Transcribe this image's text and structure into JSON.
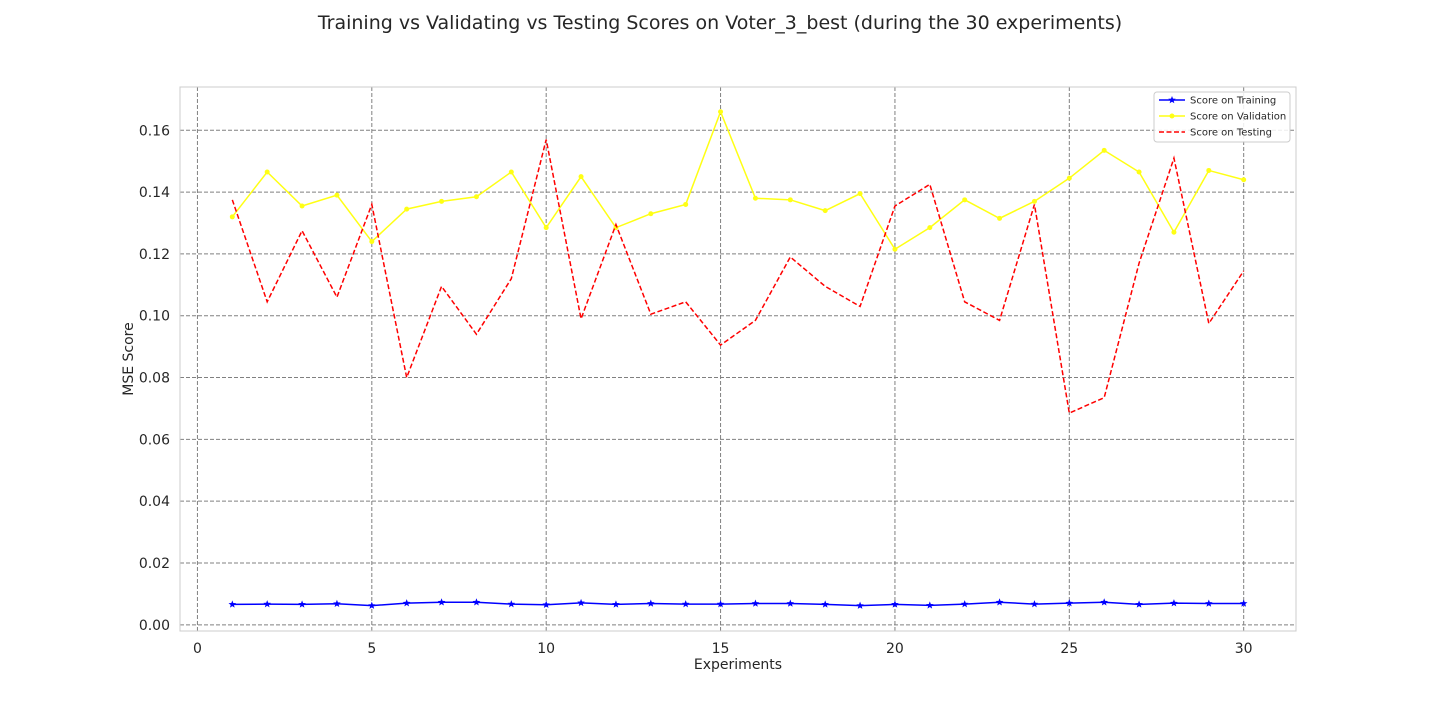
{
  "chart_data": {
    "type": "line",
    "title": "Training vs Validating vs Testing Scores on Voter_3_best (during the 30 experiments)",
    "xlabel": "Experiments",
    "ylabel": "MSE Score",
    "xlim": [
      -0.5,
      31.5
    ],
    "ylim": [
      -0.002,
      0.174
    ],
    "xticks": [
      0,
      5,
      10,
      15,
      20,
      25,
      30
    ],
    "yticks": [
      "0.00",
      "0.02",
      "0.04",
      "0.06",
      "0.08",
      "0.10",
      "0.12",
      "0.14",
      "0.16"
    ],
    "grid": true,
    "legend_position": "top-right",
    "x": [
      1,
      2,
      3,
      4,
      5,
      6,
      7,
      8,
      9,
      10,
      11,
      12,
      13,
      14,
      15,
      16,
      17,
      18,
      19,
      20,
      21,
      22,
      23,
      24,
      25,
      26,
      27,
      28,
      29,
      30
    ],
    "series": [
      {
        "name": "Score on Training",
        "color": "#0000ff",
        "style": "solid",
        "marker": "star",
        "values": [
          0.0066,
          0.0067,
          0.0066,
          0.0068,
          0.0062,
          0.007,
          0.0073,
          0.0073,
          0.0067,
          0.0065,
          0.0071,
          0.0066,
          0.0069,
          0.0067,
          0.0067,
          0.0069,
          0.0069,
          0.0066,
          0.0062,
          0.0066,
          0.0063,
          0.0067,
          0.0073,
          0.0067,
          0.007,
          0.0073,
          0.0066,
          0.007,
          0.0069,
          0.0069
        ]
      },
      {
        "name": "Score on Validation",
        "color": "#ffff14",
        "style": "solid",
        "marker": "dot",
        "values": [
          0.132,
          0.1465,
          0.1355,
          0.139,
          0.124,
          0.1345,
          0.137,
          0.1385,
          0.1465,
          0.1285,
          0.145,
          0.1285,
          0.133,
          0.136,
          0.166,
          0.138,
          0.1375,
          0.134,
          0.1395,
          0.1215,
          0.1285,
          0.1375,
          0.1315,
          0.137,
          0.1445,
          0.1535,
          0.1465,
          0.127,
          0.147,
          0.144
        ]
      },
      {
        "name": "Score on Testing",
        "color": "#ff0000",
        "style": "dashed",
        "marker": "none",
        "values": [
          0.1375,
          0.1045,
          0.1275,
          0.106,
          0.136,
          0.08,
          0.1095,
          0.094,
          0.112,
          0.157,
          0.099,
          0.1295,
          0.1005,
          0.1045,
          0.0905,
          0.0985,
          0.119,
          0.1095,
          0.103,
          0.1355,
          0.1425,
          0.1045,
          0.0985,
          0.136,
          0.0685,
          0.0735,
          0.117,
          0.151,
          0.0975,
          0.1145
        ]
      }
    ]
  }
}
